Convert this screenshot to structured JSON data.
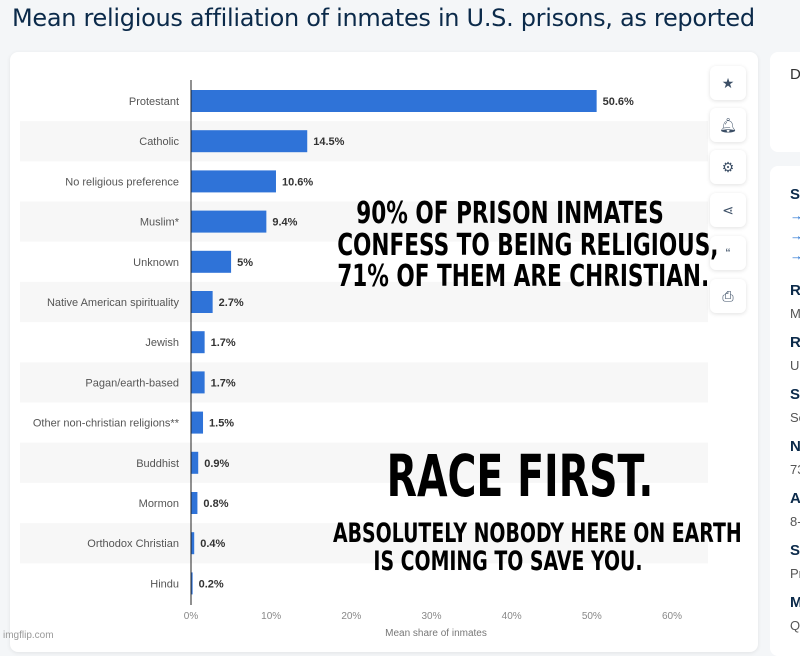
{
  "title": "Mean religious affiliation of inmates in U.S. prisons, as reported",
  "chart_data": {
    "type": "bar",
    "orientation": "horizontal",
    "categories": [
      "Protestant",
      "Catholic",
      "No religious preference",
      "Muslim*",
      "Unknown",
      "Native American spirituality",
      "Jewish",
      "Pagan/earth-based",
      "Other non-christian religions**",
      "Buddhist",
      "Mormon",
      "Orthodox Christian",
      "Hindu"
    ],
    "values": [
      50.6,
      14.5,
      10.6,
      9.4,
      5,
      2.7,
      1.7,
      1.7,
      1.5,
      0.9,
      0.8,
      0.4,
      0.2
    ],
    "data_labels": [
      "50.6%",
      "14.5%",
      "10.6%",
      "9.4%",
      "5%",
      "2.7%",
      "1.7%",
      "1.7%",
      "1.5%",
      "0.9%",
      "0.8%",
      "0.4%",
      "0.2%"
    ],
    "xlabel": "Mean share of inmates",
    "xticks": [
      "0%",
      "10%",
      "20%",
      "30%",
      "40%",
      "50%",
      "60%"
    ],
    "xlim": [
      0,
      60
    ],
    "grid": false,
    "bar_color": "#2f73d8"
  },
  "toolbar": [
    "star-icon",
    "bell-icon",
    "gear-icon",
    "share-icon",
    "quote-icon",
    "print-icon"
  ],
  "side": {
    "top": "D",
    "labels": [
      {
        "h": "Se",
        "v": ""
      },
      {
        "h": "Re",
        "v": "M"
      },
      {
        "h": "Re",
        "v": "U"
      },
      {
        "h": "Su",
        "v": "Se"
      },
      {
        "h": "N",
        "v": "73"
      },
      {
        "h": "A",
        "v": "8-"
      },
      {
        "h": "Sp",
        "v": "Pr"
      },
      {
        "h": "M",
        "v": "Q"
      }
    ]
  },
  "meme": {
    "line1": "90% OF PRISON INMATES",
    "line2": "CONFESS TO BEING RELIGIOUS,",
    "line3": "71% OF THEM ARE CHRISTIAN.",
    "big": "RACE FIRST.",
    "bottom1": "ABSOLUTELY NOBODY HERE ON EARTH",
    "bottom2": "IS COMING TO SAVE YOU."
  },
  "watermark": "imgflip.com"
}
